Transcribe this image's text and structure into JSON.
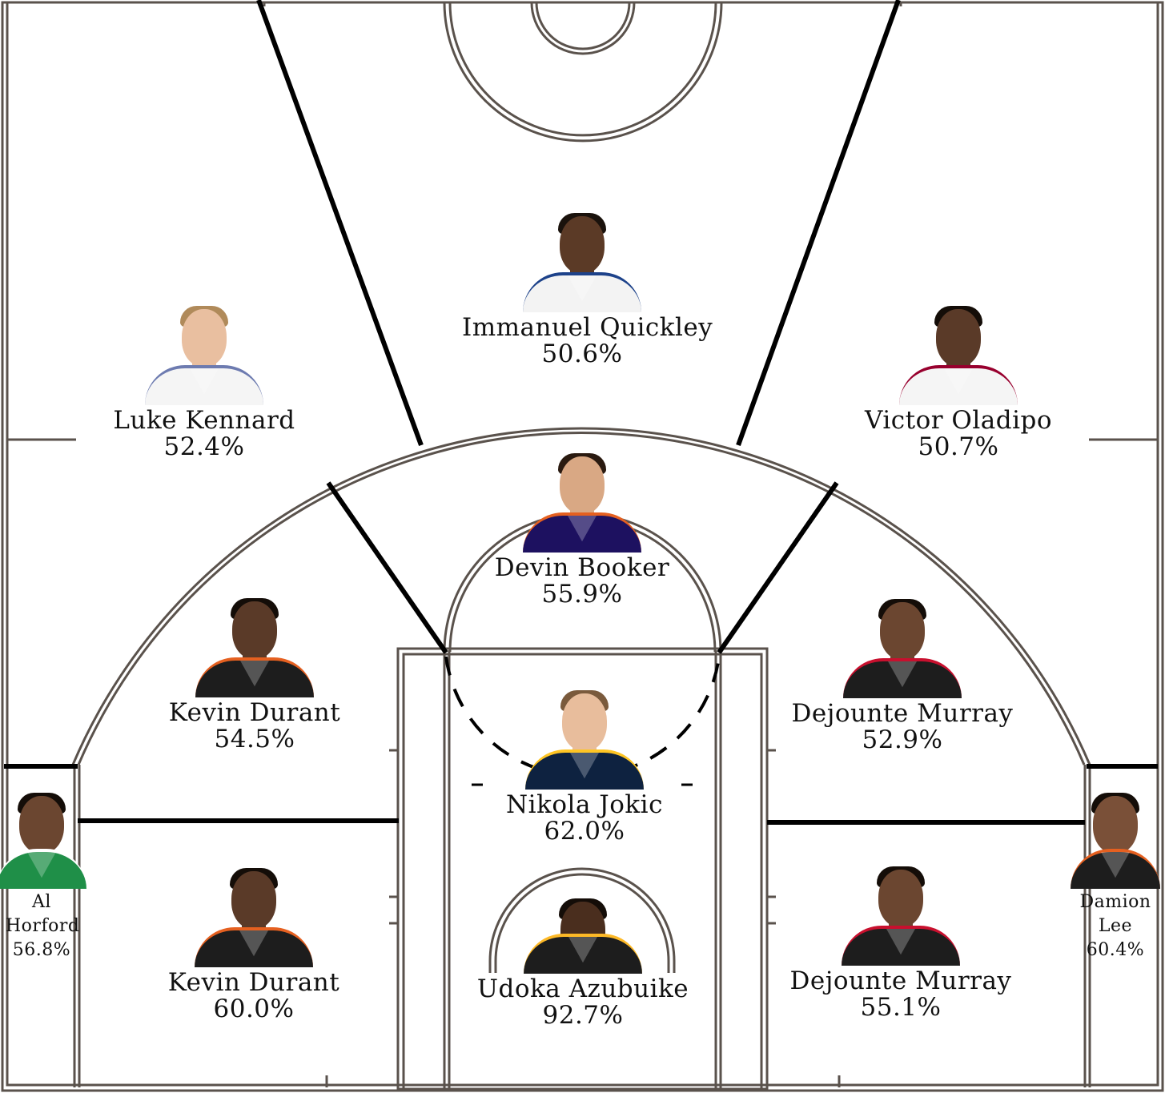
{
  "zones": [
    {
      "id": "top-key",
      "name": "Immanuel Quickley",
      "pct": "50.6%",
      "skin": "#5b3a26",
      "hair": "#1a120c",
      "jersey": "#f3f3f3",
      "trim": "#1d428a"
    },
    {
      "id": "left-wing-three",
      "name": "Luke Kennard",
      "pct": "52.4%",
      "skin": "#e9bfa0",
      "hair": "#b08a5a",
      "jersey": "#f5f5f5",
      "trim": "#6d7bb0"
    },
    {
      "id": "right-wing-three",
      "name": "Victor Oladipo",
      "pct": "50.7%",
      "skin": "#5a3a28",
      "hair": "#140d08",
      "jersey": "#f5f5f5",
      "trim": "#98002e"
    },
    {
      "id": "top-mid",
      "name": "Devin Booker",
      "pct": "55.9%",
      "skin": "#d9a884",
      "hair": "#2a1a10",
      "jersey": "#1d1160",
      "trim": "#e56020"
    },
    {
      "id": "left-elbow",
      "name": "Kevin Durant",
      "pct": "54.5%",
      "skin": "#5a3a28",
      "hair": "#140d08",
      "jersey": "#1d1d1d",
      "trim": "#e56020"
    },
    {
      "id": "right-elbow",
      "name": "Dejounte Murray",
      "pct": "52.9%",
      "skin": "#6b4630",
      "hair": "#140d08",
      "jersey": "#1d1d1d",
      "trim": "#c8102e"
    },
    {
      "id": "paint",
      "name": "Nikola Jokic",
      "pct": "62.0%",
      "skin": "#e8bd9c",
      "hair": "#7a5a3c",
      "jersey": "#0e2240",
      "trim": "#fec524"
    },
    {
      "id": "left-baseline",
      "name": "Kevin Durant",
      "pct": "60.0%",
      "skin": "#5a3a28",
      "hair": "#140d08",
      "jersey": "#1d1d1d",
      "trim": "#e56020"
    },
    {
      "id": "right-baseline",
      "name": "Dejounte Murray",
      "pct": "55.1%",
      "skin": "#6b4630",
      "hair": "#140d08",
      "jersey": "#1d1d1d",
      "trim": "#c8102e"
    },
    {
      "id": "restricted-area",
      "name": "Udoka Azubuike",
      "pct": "92.7%",
      "skin": "#4a2e1e",
      "hair": "#140d08",
      "jersey": "#1d1d1d",
      "trim": "#fdb927"
    },
    {
      "id": "left-corner",
      "name": "Al Horford",
      "pct": "56.8%",
      "skin": "#6b4630",
      "hair": "#140d08",
      "jersey": "#1f8f48",
      "trim": "#ffffff"
    },
    {
      "id": "right-corner",
      "name": "Damion Lee",
      "pct": "60.4%",
      "skin": "#7a5038",
      "hair": "#140d08",
      "jersey": "#1d1d1d",
      "trim": "#e56020"
    }
  ]
}
